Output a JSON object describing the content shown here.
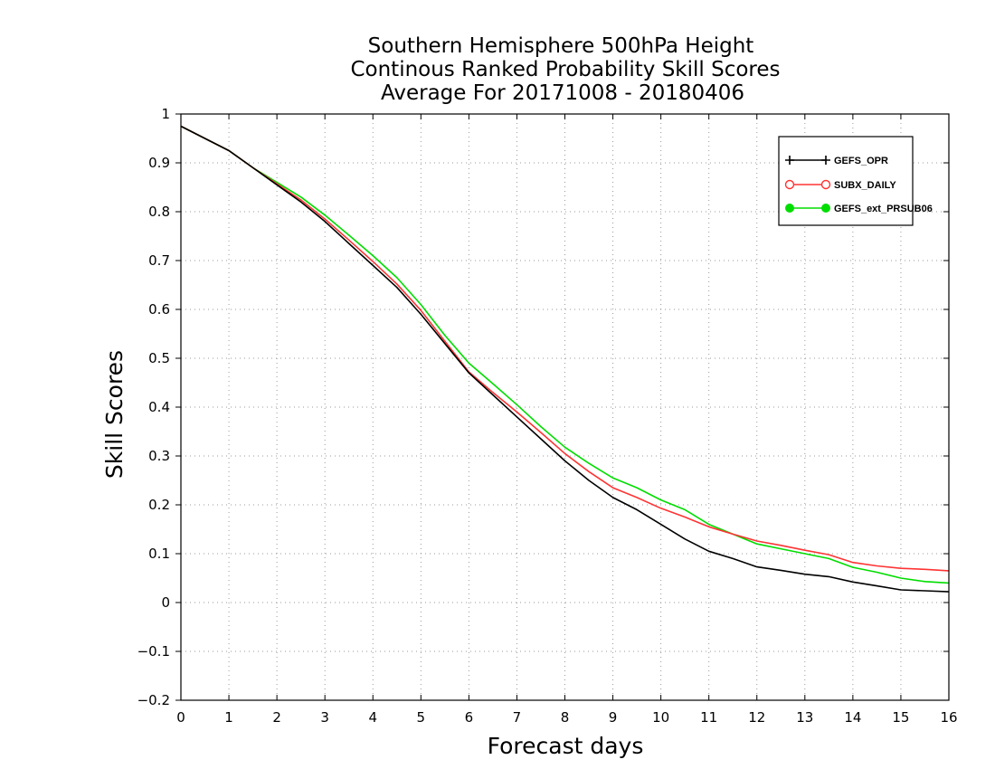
{
  "chart_data": {
    "type": "line",
    "title": [
      "Southern Hemisphere 500hPa Height",
      "Continous Ranked Probability Skill Scores",
      "Average For 20171008 - 20180406"
    ],
    "xlabel": "Forecast days",
    "ylabel": "Skill Scores",
    "xlim": [
      0,
      16
    ],
    "ylim": [
      -0.2,
      1
    ],
    "xticks": [
      "0",
      "1",
      "2",
      "3",
      "4",
      "5",
      "6",
      "7",
      "8",
      "9",
      "10",
      "11",
      "12",
      "13",
      "14",
      "15",
      "16"
    ],
    "xtick_values": [
      0,
      1,
      2,
      3,
      4,
      5,
      6,
      7,
      8,
      9,
      10,
      11,
      12,
      13,
      14,
      15,
      16
    ],
    "yticks": [
      "−0.2",
      "−0.1",
      "0",
      "0.1",
      "0.2",
      "0.3",
      "0.4",
      "0.5",
      "0.6",
      "0.7",
      "0.8",
      "0.9",
      "1"
    ],
    "ytick_values": [
      -0.2,
      -0.1,
      0,
      0.1,
      0.2,
      0.3,
      0.4,
      0.5,
      0.6,
      0.7,
      0.8,
      0.9,
      1
    ],
    "grid": true,
    "legend_position": "top-right",
    "x": [
      0,
      0.5,
      1,
      1.5,
      2,
      2.5,
      3,
      3.5,
      4,
      4.5,
      5,
      5.5,
      6,
      6.5,
      7,
      7.5,
      8,
      8.5,
      9,
      9.5,
      10,
      10.5,
      11,
      11.5,
      12,
      12.5,
      13,
      13.5,
      14,
      14.5,
      15,
      15.5,
      16
    ],
    "series": [
      {
        "name": "GEFS_OPR",
        "color": "#000000",
        "marker": "plus",
        "values": [
          0.975,
          0.95,
          0.925,
          0.89,
          0.855,
          0.82,
          0.78,
          0.735,
          0.69,
          0.645,
          0.59,
          0.53,
          0.47,
          0.425,
          0.38,
          0.335,
          0.29,
          0.25,
          0.215,
          0.19,
          0.16,
          0.13,
          0.105,
          0.09,
          0.073,
          0.066,
          0.058,
          0.053,
          0.042,
          0.034,
          0.026,
          0.024,
          0.022
        ]
      },
      {
        "name": "SUBX_DAILY",
        "color": "#ff3333",
        "marker": "open-circle",
        "values": [
          0.975,
          0.95,
          0.925,
          0.89,
          0.857,
          0.824,
          0.785,
          0.742,
          0.698,
          0.652,
          0.598,
          0.535,
          0.472,
          0.43,
          0.39,
          0.348,
          0.305,
          0.268,
          0.235,
          0.215,
          0.193,
          0.175,
          0.155,
          0.14,
          0.126,
          0.117,
          0.107,
          0.098,
          0.082,
          0.075,
          0.07,
          0.068,
          0.065
        ]
      },
      {
        "name": "GEFS_ext_PRSUB06",
        "color": "#00dd00",
        "marker": "filled-circle",
        "values": [
          0.975,
          0.95,
          0.925,
          0.89,
          0.86,
          0.83,
          0.793,
          0.752,
          0.71,
          0.665,
          0.61,
          0.547,
          0.49,
          0.448,
          0.405,
          0.36,
          0.318,
          0.285,
          0.255,
          0.235,
          0.21,
          0.19,
          0.16,
          0.14,
          0.12,
          0.11,
          0.1,
          0.09,
          0.072,
          0.062,
          0.05,
          0.043,
          0.04
        ]
      }
    ]
  }
}
